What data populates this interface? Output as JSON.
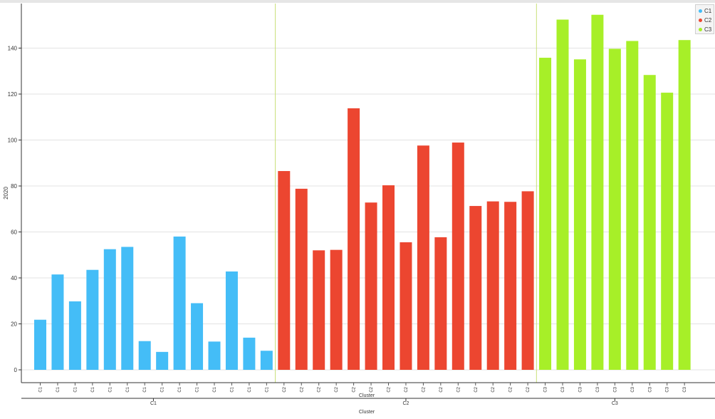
{
  "chart_data": {
    "type": "bar",
    "ylabel": "2020",
    "xlabel": "Cluster",
    "group_axis_label": "Cluster",
    "ylim": [
      -5,
      158
    ],
    "yticks": [
      0,
      20,
      40,
      60,
      80,
      100,
      120,
      140
    ],
    "grid": true,
    "legend_position": "top-right",
    "series": [
      {
        "name": "C1",
        "color": "#44bdf7",
        "categories": [
          "C1",
          "C1",
          "C1",
          "C1",
          "C1",
          "C1",
          "C1",
          "C1",
          "C1",
          "C1",
          "C1",
          "C1",
          "C1",
          "C1"
        ],
        "values": [
          21.8,
          41.5,
          29.8,
          43.5,
          52.5,
          53.5,
          12.5,
          7.8,
          58.0,
          29.0,
          12.3,
          42.8,
          14.0,
          8.3
        ]
      },
      {
        "name": "C2",
        "color": "#ec4630",
        "categories": [
          "C2",
          "C2",
          "C2",
          "C2",
          "C2",
          "C2",
          "C2",
          "C2",
          "C2",
          "C2",
          "C2",
          "C2",
          "C2",
          "C2",
          "C2"
        ],
        "values": [
          86.5,
          78.8,
          52.0,
          52.2,
          113.8,
          72.8,
          80.3,
          55.5,
          97.6,
          57.7,
          98.9,
          71.3,
          73.3,
          73.1,
          77.7
        ]
      },
      {
        "name": "C3",
        "color": "#a7ef28",
        "categories": [
          "C3",
          "C3",
          "C3",
          "C3",
          "C3",
          "C3",
          "C3",
          "C3",
          "C3"
        ],
        "values": [
          135.8,
          152.4,
          135.1,
          154.5,
          139.7,
          143.1,
          128.3,
          120.6,
          143.5
        ]
      }
    ]
  },
  "legend": [
    {
      "label": "C1",
      "color": "#44bdf7"
    },
    {
      "label": "C2",
      "color": "#ec4630"
    },
    {
      "label": "C3",
      "color": "#a7ef28"
    }
  ]
}
